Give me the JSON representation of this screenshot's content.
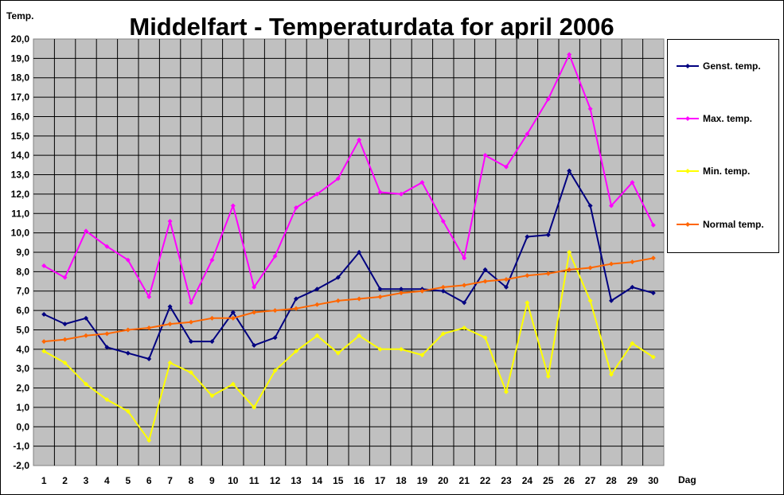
{
  "chart_data": {
    "type": "line",
    "title": "Middelfart - Temperaturdata for april 2006",
    "ylabel": "Temp.",
    "xlabel": "Dag",
    "ylim": [
      -2,
      20
    ],
    "ystep": 1,
    "ytick_labels": [
      "-2,0",
      "-1,0",
      "0,0",
      "1,0",
      "2,0",
      "3,0",
      "4,0",
      "5,0",
      "6,0",
      "7,0",
      "8,0",
      "9,0",
      "10,0",
      "11,0",
      "12,0",
      "13,0",
      "14,0",
      "15,0",
      "16,0",
      "17,0",
      "18,0",
      "19,0",
      "20,0"
    ],
    "categories": [
      "1",
      "2",
      "3",
      "4",
      "5",
      "6",
      "7",
      "8",
      "9",
      "10",
      "11",
      "12",
      "13",
      "14",
      "15",
      "16",
      "17",
      "18",
      "19",
      "20",
      "21",
      "22",
      "23",
      "24",
      "25",
      "26",
      "27",
      "28",
      "29",
      "30"
    ],
    "grid": true,
    "legend_position": "right",
    "plot_background": "#c0c0c0",
    "series": [
      {
        "name": "Genst. temp.",
        "color": "#000080",
        "values": [
          5.8,
          5.3,
          5.6,
          4.1,
          3.8,
          3.5,
          6.2,
          4.4,
          4.4,
          5.9,
          4.2,
          4.6,
          6.6,
          7.1,
          7.7,
          9.0,
          7.1,
          7.1,
          7.1,
          7.0,
          6.4,
          8.1,
          7.2,
          9.8,
          9.9,
          13.2,
          11.4,
          6.5,
          7.2,
          6.9
        ]
      },
      {
        "name": "Max. temp.",
        "color": "#ff00ff",
        "values": [
          8.3,
          7.7,
          10.1,
          9.3,
          8.6,
          6.7,
          10.6,
          6.4,
          8.6,
          11.4,
          7.2,
          8.8,
          11.3,
          12.0,
          12.8,
          14.8,
          12.1,
          12.0,
          12.6,
          10.6,
          8.7,
          14.0,
          13.4,
          15.1,
          16.9,
          19.2,
          16.4,
          11.4,
          12.6,
          10.4
        ]
      },
      {
        "name": "Min. temp.",
        "color": "#ffff00",
        "values": [
          3.9,
          3.3,
          2.2,
          1.4,
          0.8,
          -0.7,
          3.3,
          2.8,
          1.6,
          2.2,
          1.0,
          2.9,
          3.9,
          4.7,
          3.8,
          4.7,
          4.0,
          4.0,
          3.7,
          4.8,
          5.1,
          4.6,
          1.8,
          6.4,
          2.6,
          9.0,
          6.5,
          2.7,
          4.3,
          3.6
        ]
      },
      {
        "name": "Normal temp.",
        "color": "#ff6600",
        "values": [
          4.4,
          4.5,
          4.7,
          4.8,
          5.0,
          5.1,
          5.3,
          5.4,
          5.6,
          5.6,
          5.9,
          6.0,
          6.1,
          6.3,
          6.5,
          6.6,
          6.7,
          6.9,
          7.0,
          7.2,
          7.3,
          7.5,
          7.6,
          7.8,
          7.9,
          8.1,
          8.2,
          8.4,
          8.5,
          8.7
        ]
      }
    ]
  }
}
